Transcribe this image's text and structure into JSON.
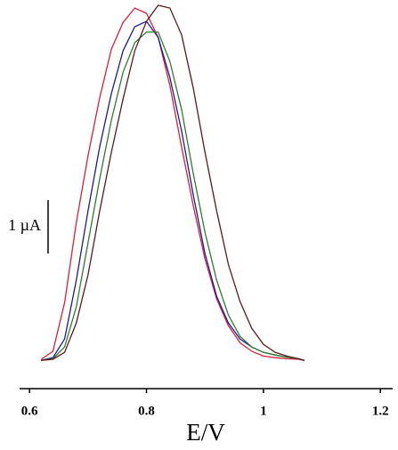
{
  "chart_data": {
    "type": "line",
    "x_label": "E/V",
    "x": [
      0.62,
      0.64,
      0.66,
      0.68,
      0.7,
      0.72,
      0.74,
      0.76,
      0.78,
      0.8,
      0.82,
      0.84,
      0.86,
      0.88,
      0.9,
      0.92,
      0.94,
      0.96,
      0.98,
      1.0,
      1.02,
      1.04,
      1.06,
      1.07
    ],
    "series": [
      {
        "color": "#d6203a",
        "values": [
          0.02,
          0.17,
          1.08,
          2.58,
          3.83,
          4.92,
          5.83,
          6.33,
          6.6,
          6.5,
          6.05,
          5.15,
          4.0,
          2.9,
          1.9,
          1.15,
          0.65,
          0.33,
          0.17,
          0.08,
          0.05,
          0.03,
          0.02,
          0.0
        ]
      },
      {
        "color": "#1c1c8e",
        "values": [
          0.0,
          0.05,
          0.4,
          1.5,
          2.8,
          4.0,
          5.0,
          5.8,
          6.25,
          6.35,
          6.05,
          5.3,
          4.3,
          3.1,
          2.0,
          1.2,
          0.7,
          0.4,
          0.25,
          0.15,
          0.1,
          0.06,
          0.03,
          0.0
        ]
      },
      {
        "color": "#2e7d32",
        "values": [
          0.0,
          0.03,
          0.25,
          1.0,
          2.2,
          3.4,
          4.5,
          5.4,
          5.95,
          6.15,
          6.15,
          5.6,
          4.7,
          3.5,
          2.4,
          1.5,
          0.85,
          0.45,
          0.25,
          0.15,
          0.1,
          0.06,
          0.03,
          0.0
        ]
      },
      {
        "color": "#5a1a1a",
        "values": [
          0.0,
          0.02,
          0.15,
          0.7,
          1.6,
          2.8,
          3.9,
          4.9,
          5.8,
          6.35,
          6.65,
          6.6,
          6.1,
          5.1,
          3.9,
          2.8,
          1.8,
          1.1,
          0.6,
          0.3,
          0.15,
          0.08,
          0.03,
          0.0
        ]
      }
    ],
    "xlim": [
      0.583,
      1.221
    ],
    "xticks": [
      0.6,
      0.8,
      1,
      1.2
    ],
    "ylim": [
      -0.53,
      6.75
    ],
    "scale_bar": {
      "value": 1,
      "label": "1 µA"
    }
  }
}
